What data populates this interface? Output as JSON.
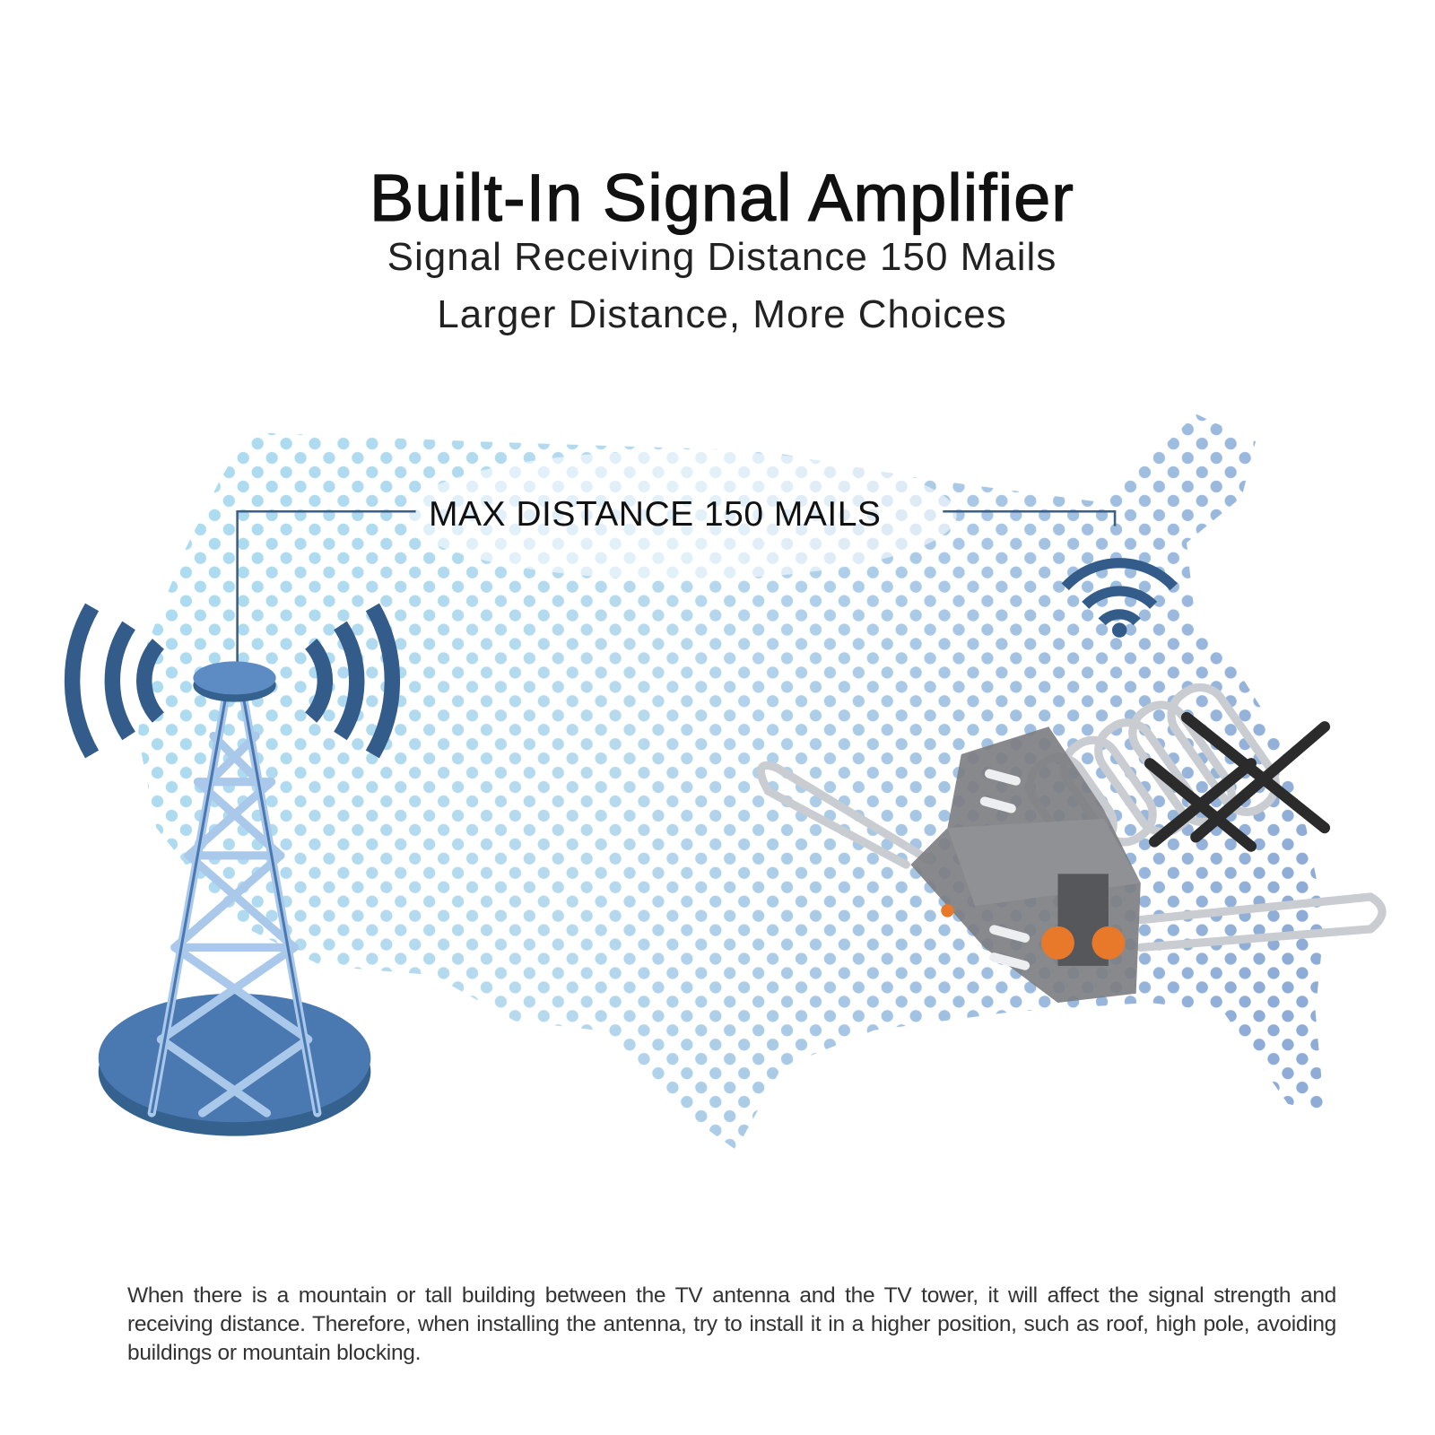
{
  "header": {
    "title": "Built-In Signal Amplifier",
    "subtitle_line1": "Signal Receiving Distance 150 Mails",
    "subtitle_line2": "Larger Distance, More Choices"
  },
  "illustration": {
    "distance_label": "MAX DISTANCE 150 MAILS",
    "icons": [
      "broadcast-tower-icon",
      "signal-waves-icon",
      "wifi-signal-icon",
      "tv-antenna-product",
      "us-map-dots"
    ],
    "colors": {
      "tower_blue": "#4a78b0",
      "wave_blue": "#335c8a",
      "map_dot_light": "#a9d8ef",
      "map_dot_dark": "#9ab3d8",
      "knob_orange": "#e8782a",
      "antenna_grey": "#7d7f82"
    }
  },
  "footer": {
    "description": "When there is a mountain or tall building between the TV antenna and the TV tower, it will affect the signal strength and receiving distance. Therefore, when installing the antenna, try to install it in a higher position, such as roof, high pole, avoiding buildings or mountain blocking."
  }
}
